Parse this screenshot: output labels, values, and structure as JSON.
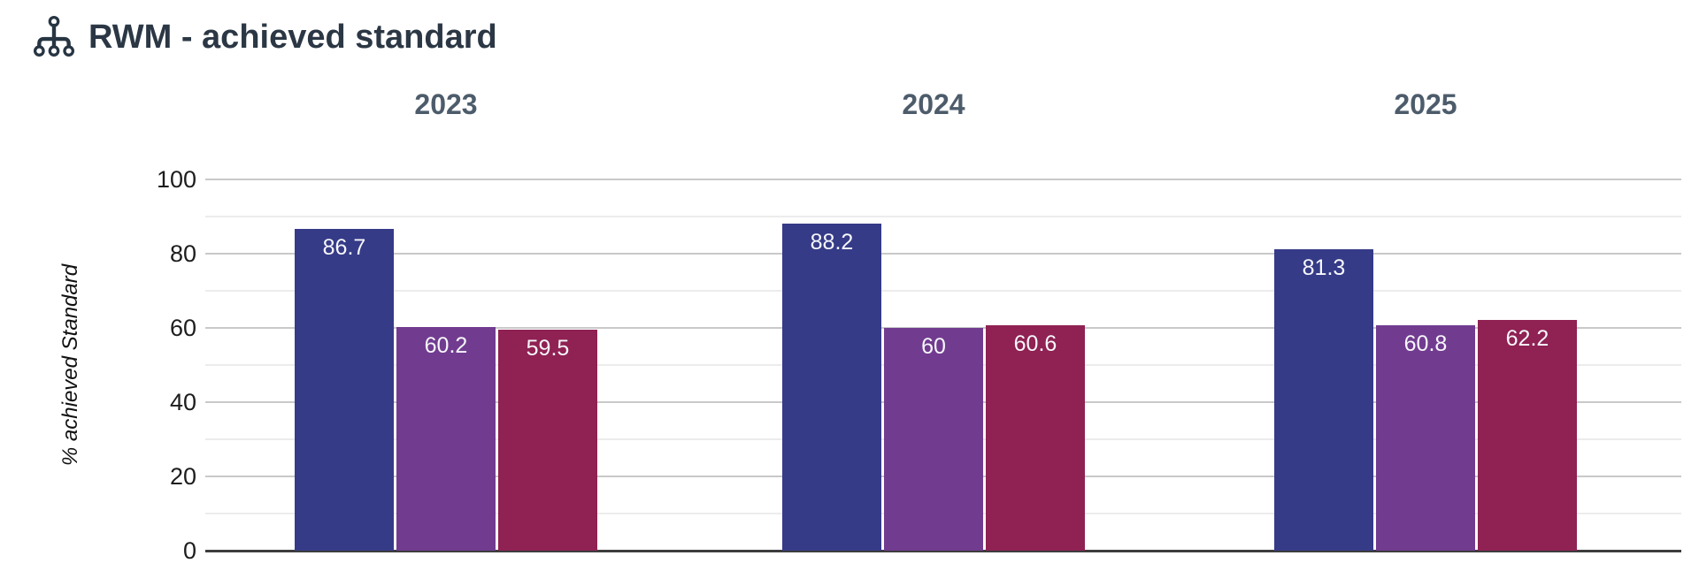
{
  "header": {
    "title": "RWM - achieved standard",
    "icon": "sitemap-icon"
  },
  "palette": {
    "title_text": "#2b3744",
    "category_text": "#4d5c6b",
    "tick_text": "#1d1d1d",
    "bar_label_text": "#f7f7fb",
    "axis_line": "#3d3d3d",
    "grid_major": "#c9c9c9",
    "grid_minor": "#ececec"
  },
  "chart_data": {
    "type": "bar",
    "title": "RWM - achieved standard",
    "categories": [
      "2023",
      "2024",
      "2025"
    ],
    "series": [
      {
        "color": "#353b87",
        "values": [
          86.7,
          88.2,
          81.3
        ],
        "labels": [
          "86.7",
          "88.2",
          "81.3"
        ]
      },
      {
        "color": "#713c90",
        "values": [
          60.2,
          60.0,
          60.8
        ],
        "labels": [
          "60.2",
          "60",
          "60.8"
        ]
      },
      {
        "color": "#8f2153",
        "values": [
          59.5,
          60.6,
          62.2
        ],
        "labels": [
          "59.5",
          "60.6",
          "62.2"
        ]
      }
    ],
    "xlabel": "",
    "ylabel": "% achieved Standard",
    "ylim": [
      0,
      100
    ],
    "yticks": [
      0,
      20,
      40,
      60,
      80,
      100
    ],
    "grid": {
      "minor_step": 10,
      "major_step": 20,
      "grid_on": true
    },
    "legend": "none",
    "value_labels": "inside-top"
  }
}
